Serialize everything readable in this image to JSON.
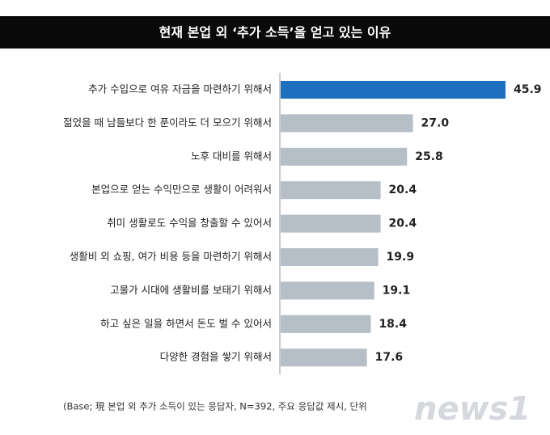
{
  "chart_data": {
    "type": "bar",
    "orientation": "horizontal",
    "title": "현재 본업 외 ‘추가 소득’을 얻고 있는 이유",
    "categories": [
      "추가 수입으로 여유 자금을 마련하기 위해서",
      "젊었을 때 남들보다 한 푼이라도 더 모으기 위해서",
      "노후 대비를 위해서",
      "본업으로 얻는 수익만으로 생활이 어려워서",
      "취미 생활로도 수익을 창출할 수 있어서",
      "생활비 외 쇼핑, 여가 비용 등을 마련하기 위해서",
      "고물가 시대에 생활비를 보태기 위해서",
      "하고 싶은 일을 하면서 돈도 벌 수 있어서",
      "다양한 경험을 쌓기 위해서"
    ],
    "values": [
      45.9,
      27.0,
      25.8,
      20.4,
      20.4,
      19.9,
      19.1,
      18.4,
      17.6
    ],
    "value_labels": [
      "45.9",
      "27.0",
      "25.8",
      "20.4",
      "20.4",
      "19.9",
      "19.1",
      "18.4",
      "17.6"
    ],
    "colors": [
      "#1f6fc0",
      "#b6bec8",
      "#b6bec8",
      "#b6bec8",
      "#b6bec8",
      "#b6bec8",
      "#b6bec8",
      "#b6bec8",
      "#b6bec8"
    ],
    "note": "(Base; 現 본업 외 추가 소득이 있는 응답자, N=392, 주요 응답값 제시, 단위",
    "watermark": "news1"
  }
}
